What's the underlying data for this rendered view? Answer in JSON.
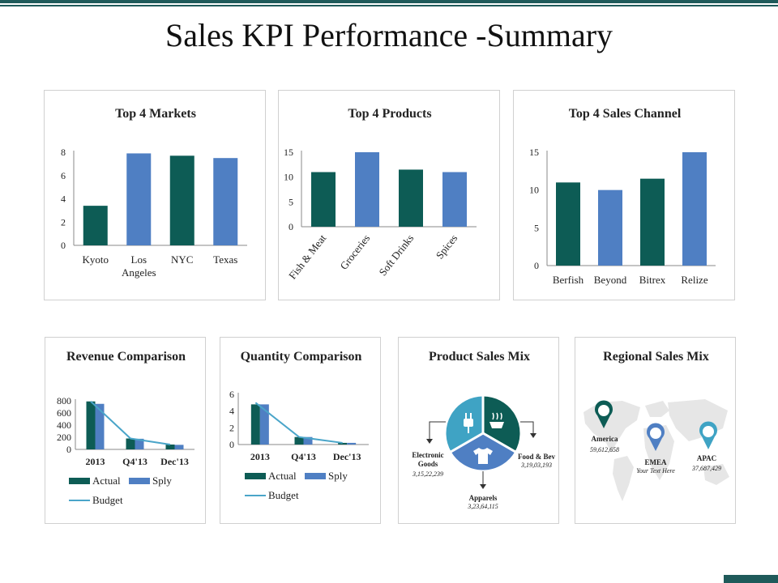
{
  "title": "Sales KPI Performance -Summary",
  "colors": {
    "dark": "#0d5c55",
    "light": "#4f7fc3",
    "line": "#4aa5c9",
    "mix_mid": "#3fa3c4",
    "map": "#e6e6e6"
  },
  "chart_data": [
    {
      "id": "markets",
      "type": "bar",
      "title": "Top 4 Markets",
      "categories": [
        "Kyoto",
        "Los Angeles",
        "NYC",
        "Texas"
      ],
      "cat_lines": [
        [
          "Kyoto"
        ],
        [
          "Los",
          "Angeles"
        ],
        [
          "NYC"
        ],
        [
          "Texas"
        ]
      ],
      "values": [
        3.4,
        7.9,
        7.7,
        7.5
      ],
      "ylim": [
        0,
        8
      ],
      "yticks": [
        "0",
        "2",
        "4",
        "6",
        "8"
      ],
      "bar_colors": [
        "dark",
        "light",
        "dark",
        "light"
      ]
    },
    {
      "id": "products",
      "type": "bar",
      "title": "Top 4 Products",
      "categories": [
        "Fish & Meat",
        "Groceries",
        "Soft Drinks",
        "Spices"
      ],
      "values": [
        11,
        15,
        11.5,
        11
      ],
      "ylim": [
        0,
        15
      ],
      "yticks": [
        "0",
        "5",
        "10",
        "15"
      ],
      "bar_colors": [
        "dark",
        "light",
        "dark",
        "light"
      ]
    },
    {
      "id": "channels",
      "type": "bar",
      "title": "Top 4 Sales Channel",
      "categories": [
        "Berfish",
        "Beyond",
        "Bitrex",
        "Relize"
      ],
      "values": [
        11,
        10,
        11.5,
        15
      ],
      "ylim": [
        0,
        15
      ],
      "yticks": [
        "0",
        "5",
        "10",
        "15"
      ],
      "bar_colors": [
        "dark",
        "light",
        "dark",
        "light"
      ]
    },
    {
      "id": "revenue",
      "type": "bar",
      "title": "Revenue Comparison",
      "categories": [
        "2013",
        "Q4'13",
        "Dec'13"
      ],
      "series": [
        {
          "name": "Actual",
          "values": [
            790,
            180,
            80
          ]
        },
        {
          "name": "Sply",
          "values": [
            750,
            175,
            75
          ]
        }
      ],
      "line": {
        "name": "Budget",
        "values": [
          790,
          180,
          80
        ]
      },
      "ylim": [
        0,
        800
      ],
      "yticks": [
        "0",
        "200",
        "400",
        "600",
        "800"
      ]
    },
    {
      "id": "quantity",
      "type": "bar",
      "title": "Quantity Comparison",
      "categories": [
        "2013",
        "Q4'13",
        "Dec'13"
      ],
      "series": [
        {
          "name": "Actual",
          "values": [
            4.8,
            0.9,
            0.2
          ]
        },
        {
          "name": "Sply",
          "values": [
            4.8,
            0.9,
            0.2
          ]
        }
      ],
      "line": {
        "name": "Budget",
        "values": [
          5.0,
          0.9,
          0.2
        ]
      },
      "ylim": [
        0,
        6
      ],
      "yticks": [
        "0",
        "2",
        "4",
        "6"
      ]
    },
    {
      "id": "product_mix",
      "type": "pie",
      "title": "Product Sales Mix",
      "slices": [
        {
          "label": "Food & Bev",
          "value": "3,19,03,193"
        },
        {
          "label": "Apparels",
          "value": "3,23,64,115"
        },
        {
          "label": "Electronic Goods",
          "label_lines": [
            "Electronic",
            "Goods"
          ],
          "value": "3,15,22,239"
        }
      ]
    },
    {
      "id": "regional_mix",
      "type": "table",
      "title": "Regional Sales Mix",
      "regions": [
        {
          "name": "America",
          "value": "59,612,658"
        },
        {
          "name": "EMEA",
          "value": "Your Text Here"
        },
        {
          "name": "APAC",
          "value": "37,687,429"
        }
      ]
    }
  ]
}
